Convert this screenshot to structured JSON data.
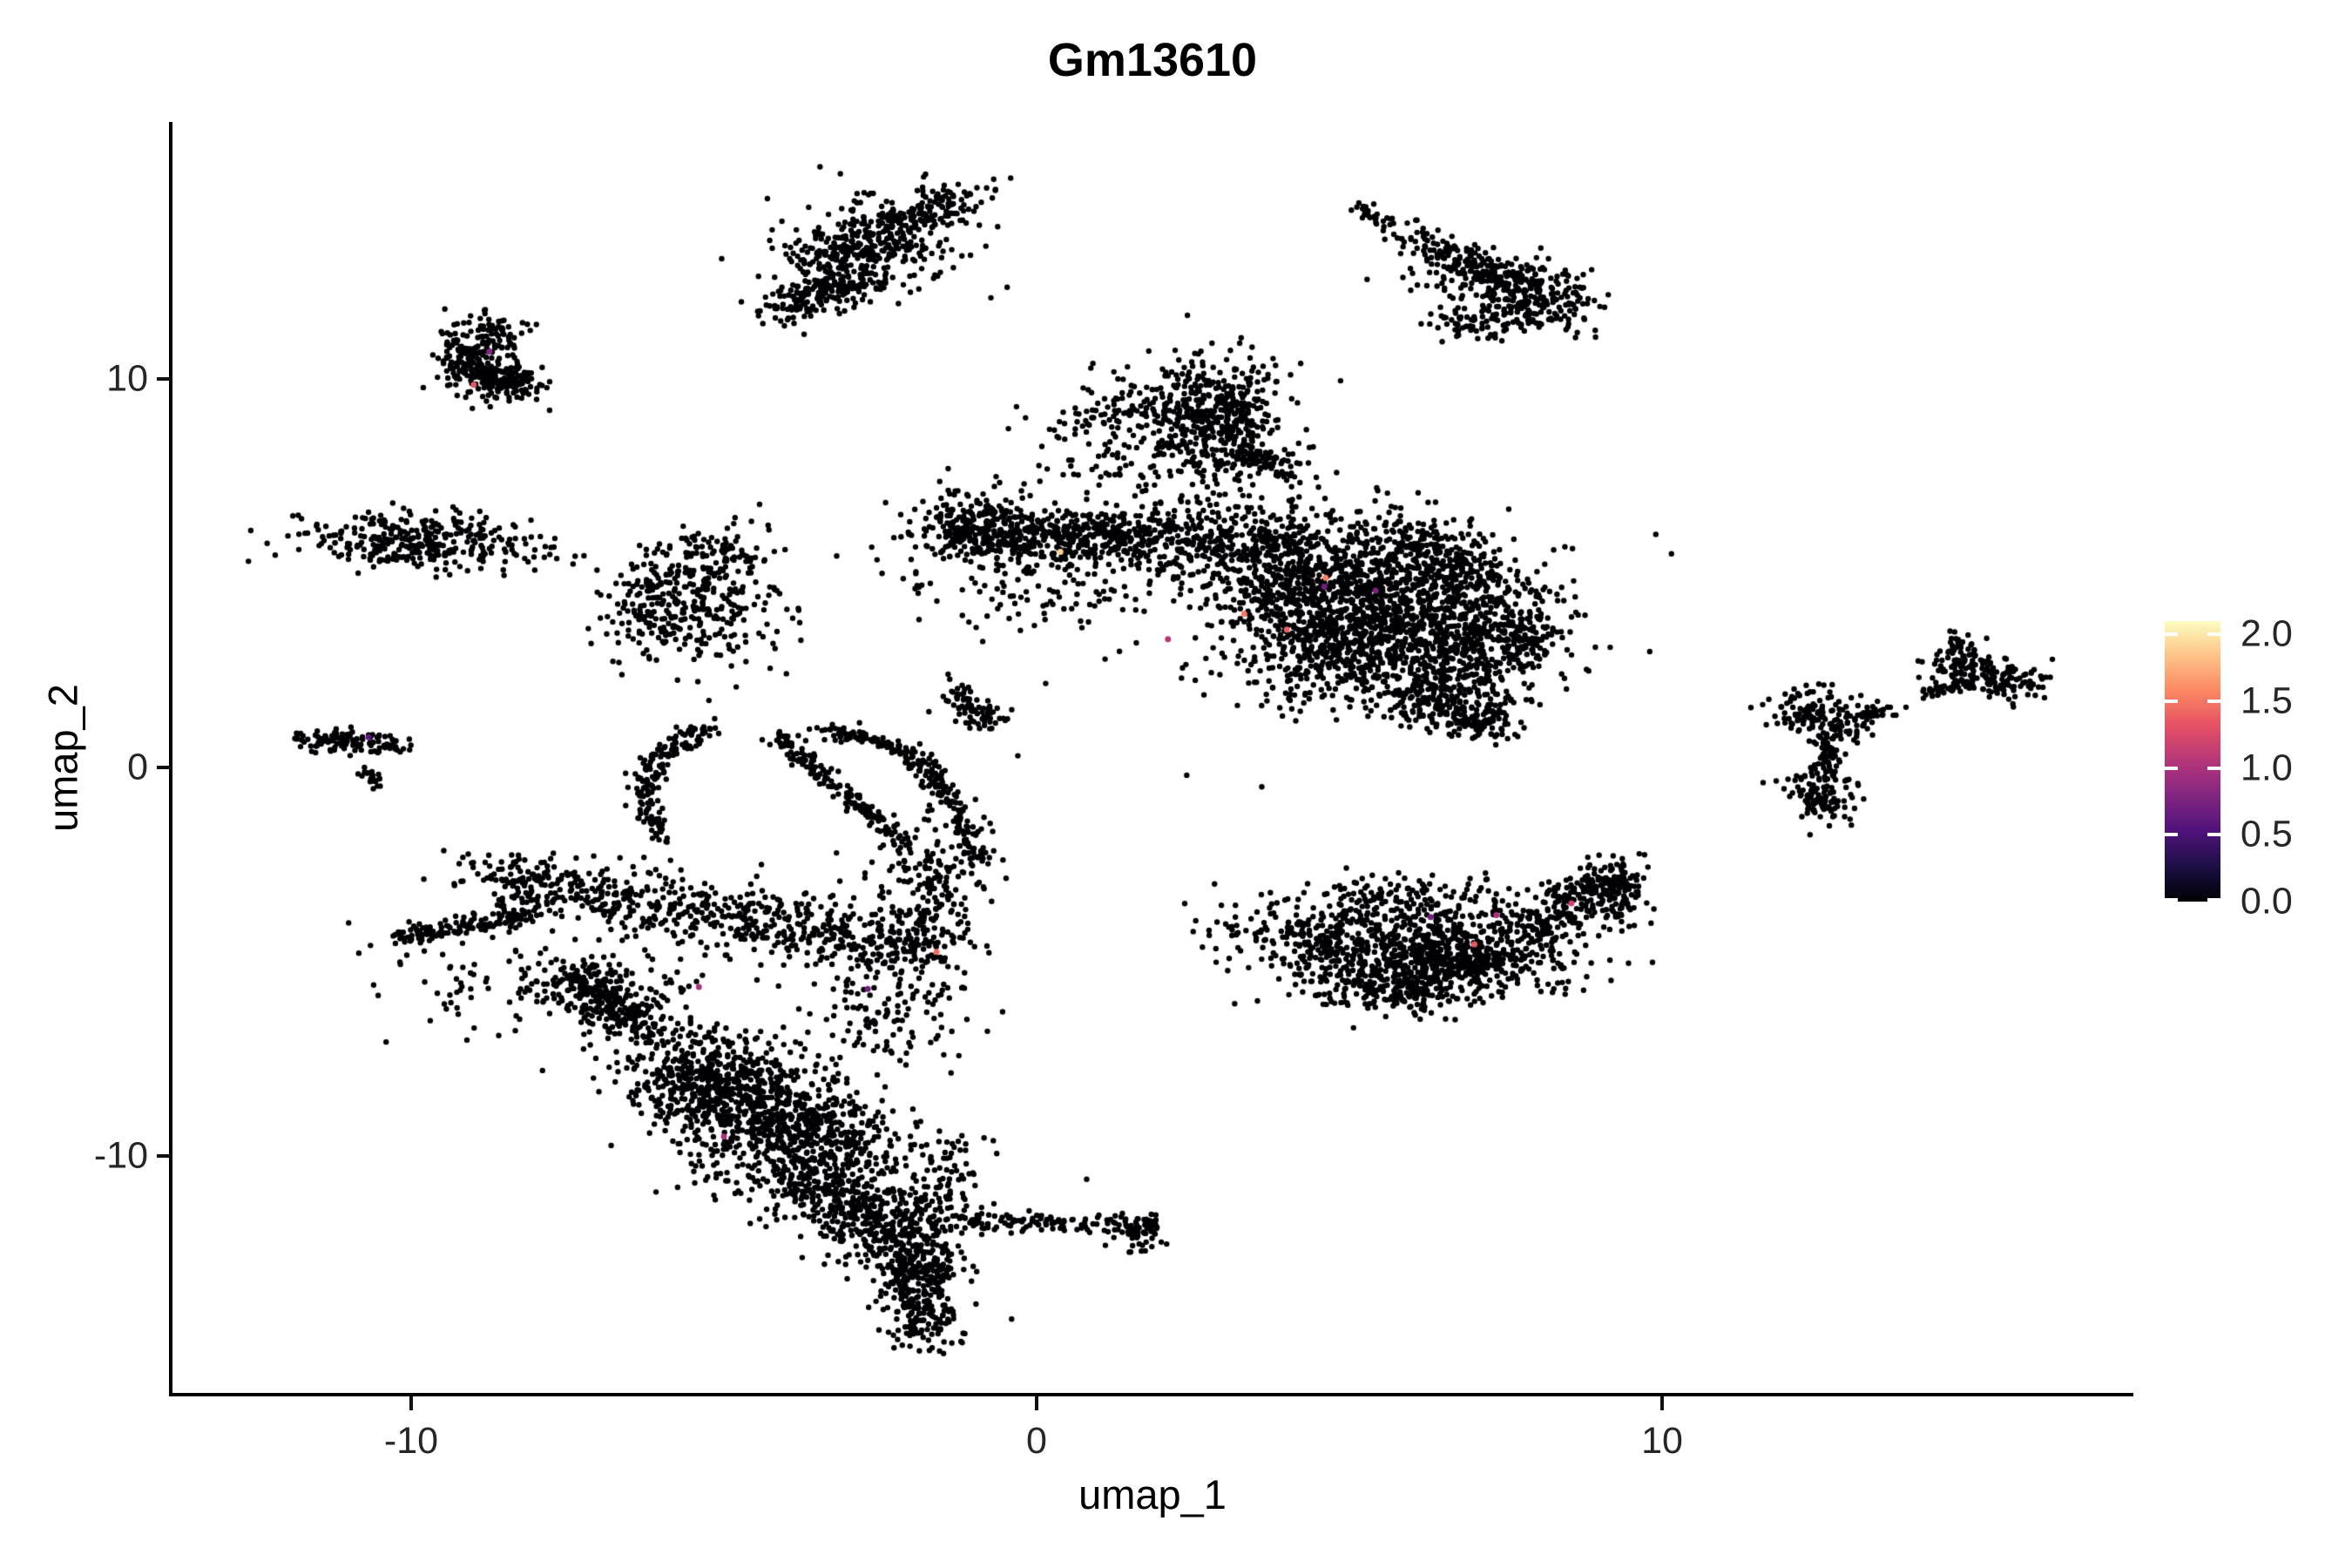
{
  "chart_data": {
    "type": "scatter",
    "title": "Gm13610",
    "x_axis": {
      "label": "umap_1",
      "range": [
        -13.8,
        17.5
      ],
      "ticks": [
        {
          "value": -10,
          "label": "-10"
        },
        {
          "value": 0,
          "label": "0"
        },
        {
          "value": 10,
          "label": "10"
        }
      ]
    },
    "y_axis": {
      "label": "umap_2",
      "range": [
        -16.1,
        16.6
      ],
      "ticks": [
        {
          "value": 10,
          "label": "10"
        },
        {
          "value": 0,
          "label": "0"
        },
        {
          "value": -10,
          "label": "-10"
        }
      ]
    },
    "legend": {
      "position": "right",
      "max": 2.1,
      "colormap": "magma",
      "stops": [
        "#000004",
        "#1C1044",
        "#4F127B",
        "#812581",
        "#B5367A",
        "#E55064",
        "#FB8761",
        "#FEC287",
        "#FCFDBF"
      ],
      "ticks": [
        {
          "value": 2.0,
          "label": "2.0"
        },
        {
          "value": 1.5,
          "label": "1.5"
        },
        {
          "value": 1.0,
          "label": "1.0"
        },
        {
          "value": 0.5,
          "label": "0.5"
        },
        {
          "value": 0.0,
          "label": "0.0"
        }
      ]
    },
    "point_color_zero": "#000004",
    "point_radius": 3.2,
    "seed": 7,
    "clusters": [
      {
        "type": "strand",
        "p0": [
          -3.5,
          12.9
        ],
        "p1": [
          -1.15,
          14.8
        ],
        "jitter": 0.28,
        "n": 260
      },
      {
        "type": "strand",
        "p0": [
          -4.05,
          11.75
        ],
        "p1": [
          -2.95,
          12.55
        ],
        "jitter": 0.22,
        "n": 150
      },
      {
        "type": "blob",
        "c": [
          -2.65,
          13.35
        ],
        "s": [
          0.85,
          0.65
        ],
        "angle": 35,
        "n": 260
      },
      {
        "type": "strand",
        "p0": [
          5.15,
          14.45
        ],
        "p1": [
          5.6,
          13.95
        ],
        "jitter": 0.09,
        "n": 30
      },
      {
        "type": "strand",
        "p0": [
          5.95,
          13.7
        ],
        "p1": [
          7.55,
          12.55
        ],
        "jitter": 0.2,
        "n": 130
      },
      {
        "type": "blob",
        "c": [
          7.9,
          12.1
        ],
        "s": [
          0.5,
          0.4
        ],
        "angle": -35,
        "n": 240
      },
      {
        "type": "blob",
        "c": [
          6.9,
          12.75
        ],
        "s": [
          0.55,
          0.45
        ],
        "angle": 0,
        "n": 70
      },
      {
        "type": "blob",
        "c": [
          7.0,
          11.55
        ],
        "s": [
          0.35,
          0.28
        ],
        "angle": 0,
        "n": 70
      },
      {
        "type": "arc",
        "p0": [
          -8.55,
          11.3
        ],
        "p1": [
          -9.75,
          10.5
        ],
        "p2": [
          -8.5,
          9.8
        ],
        "jitter": 0.28,
        "n": 300
      },
      {
        "type": "blob",
        "c": [
          -8.3,
          9.95
        ],
        "s": [
          0.3,
          0.25
        ],
        "angle": 0,
        "n": 90
      },
      {
        "type": "blob",
        "c": [
          -9.9,
          5.85
        ],
        "s": [
          1.0,
          0.36
        ],
        "angle": -4,
        "n": 330
      },
      {
        "type": "strand",
        "p0": [
          -11.7,
          0.75
        ],
        "p1": [
          -10.2,
          0.55
        ],
        "jitter": 0.16,
        "n": 120
      },
      {
        "type": "strand",
        "p0": [
          -10.75,
          -0.05
        ],
        "p1": [
          -10.5,
          -0.5
        ],
        "jitter": 0.07,
        "n": 22
      },
      {
        "type": "blob",
        "c": [
          -5.85,
          4.3
        ],
        "s": [
          0.55,
          0.75
        ],
        "angle": 0,
        "n": 280
      },
      {
        "type": "blob",
        "c": [
          -5.05,
          5.55
        ],
        "s": [
          0.35,
          0.3
        ],
        "angle": 0,
        "n": 70
      },
      {
        "type": "blob",
        "c": [
          -4.75,
          4.2
        ],
        "s": [
          0.55,
          0.85
        ],
        "angle": 0,
        "n": 90
      },
      {
        "type": "blob",
        "c": [
          2.85,
          8.95
        ],
        "s": [
          0.6,
          0.8
        ],
        "angle": 0,
        "n": 480
      },
      {
        "type": "strand",
        "p0": [
          3.3,
          8.1
        ],
        "p1": [
          4.15,
          7.55
        ],
        "jitter": 0.16,
        "n": 70
      },
      {
        "type": "blob",
        "c": [
          1.7,
          8.3
        ],
        "s": [
          0.9,
          0.85
        ],
        "angle": 0,
        "n": 120
      },
      {
        "type": "strand",
        "p0": [
          0.5,
          9.0
        ],
        "p1": [
          2.0,
          9.5
        ],
        "jitter": 0.3,
        "n": 60
      },
      {
        "type": "strand",
        "p0": [
          -1.6,
          6.05
        ],
        "p1": [
          1.6,
          5.95
        ],
        "jitter": 0.33,
        "n": 520
      },
      {
        "type": "blob",
        "c": [
          -0.9,
          6.75
        ],
        "s": [
          0.4,
          0.3
        ],
        "angle": 0,
        "n": 60
      },
      {
        "type": "blob",
        "c": [
          0.2,
          4.9
        ],
        "s": [
          1.1,
          0.75
        ],
        "angle": 0,
        "n": 170
      },
      {
        "type": "strand",
        "p0": [
          -1.45,
          1.95
        ],
        "p1": [
          -0.7,
          1.2
        ],
        "jitter": 0.18,
        "n": 80
      },
      {
        "type": "blob",
        "c": [
          2.1,
          5.8
        ],
        "s": [
          0.5,
          0.5
        ],
        "angle": 0,
        "n": 130
      },
      {
        "type": "blob",
        "c": [
          4.2,
          4.7
        ],
        "s": [
          0.85,
          0.95
        ],
        "angle": 0,
        "n": 600
      },
      {
        "type": "blob",
        "c": [
          5.8,
          4.4
        ],
        "s": [
          0.95,
          0.95
        ],
        "angle": 0,
        "n": 650
      },
      {
        "type": "blob",
        "c": [
          6.9,
          3.4
        ],
        "s": [
          0.7,
          0.85
        ],
        "angle": 0,
        "n": 430
      },
      {
        "type": "blob",
        "c": [
          5.0,
          2.9
        ],
        "s": [
          0.95,
          0.7
        ],
        "angle": 0,
        "n": 430
      },
      {
        "type": "blob",
        "c": [
          6.5,
          1.75
        ],
        "s": [
          0.5,
          0.45
        ],
        "angle": 0,
        "n": 190
      },
      {
        "type": "blob",
        "c": [
          7.15,
          1.2
        ],
        "s": [
          0.3,
          0.3
        ],
        "angle": 0,
        "n": 80
      },
      {
        "type": "blob",
        "c": [
          3.4,
          5.85
        ],
        "s": [
          0.65,
          0.45
        ],
        "angle": 0,
        "n": 210
      },
      {
        "type": "strand",
        "p0": [
          5.5,
          6.3
        ],
        "p1": [
          7.6,
          4.6
        ],
        "jitter": 0.3,
        "n": 160
      },
      {
        "type": "blob",
        "c": [
          7.85,
          3.3
        ],
        "s": [
          0.28,
          0.55
        ],
        "angle": 0,
        "n": 100
      },
      {
        "type": "blob",
        "c": [
          12.35,
          1.5
        ],
        "s": [
          0.4,
          0.3
        ],
        "angle": 0,
        "n": 100
      },
      {
        "type": "blob",
        "c": [
          12.8,
          1.0
        ],
        "s": [
          0.22,
          0.2
        ],
        "angle": 0,
        "n": 55
      },
      {
        "type": "strand",
        "p0": [
          12.62,
          0.85
        ],
        "p1": [
          12.7,
          -0.1
        ],
        "jitter": 0.07,
        "n": 40
      },
      {
        "type": "blob",
        "c": [
          12.55,
          -0.7
        ],
        "s": [
          0.27,
          0.38
        ],
        "angle": 0,
        "n": 120
      },
      {
        "type": "strand",
        "p0": [
          13.05,
          1.3
        ],
        "p1": [
          13.7,
          1.5
        ],
        "jitter": 0.08,
        "n": 30
      },
      {
        "type": "strand",
        "p0": [
          14.2,
          1.9
        ],
        "p1": [
          14.75,
          2.15
        ],
        "jitter": 0.09,
        "n": 35
      },
      {
        "type": "blob",
        "c": [
          15.15,
          2.4
        ],
        "s": [
          0.5,
          0.26
        ],
        "angle": -18,
        "n": 170
      },
      {
        "type": "blob",
        "c": [
          14.8,
          3.05
        ],
        "s": [
          0.17,
          0.22
        ],
        "angle": 0,
        "n": 35
      },
      {
        "type": "blob",
        "c": [
          5.3,
          -4.6
        ],
        "s": [
          1.05,
          0.55
        ],
        "angle": -8,
        "n": 580
      },
      {
        "type": "blob",
        "c": [
          6.9,
          -4.9
        ],
        "s": [
          0.85,
          0.5
        ],
        "angle": 8,
        "n": 430
      },
      {
        "type": "strand",
        "p0": [
          7.9,
          -4.2
        ],
        "p1": [
          9.25,
          -2.85
        ],
        "jitter": 0.3,
        "n": 240
      },
      {
        "type": "blob",
        "c": [
          9.3,
          -3.2
        ],
        "s": [
          0.25,
          0.45
        ],
        "angle": 0,
        "n": 90
      },
      {
        "type": "strand",
        "p0": [
          4.9,
          -3.3
        ],
        "p1": [
          7.5,
          -3.35
        ],
        "jitter": 0.35,
        "n": 120
      },
      {
        "type": "blob",
        "c": [
          5.6,
          -5.75
        ],
        "s": [
          0.75,
          0.3
        ],
        "angle": -6,
        "n": 170
      },
      {
        "type": "arc",
        "p0": [
          -5.2,
          1.0
        ],
        "p1": [
          -6.7,
          0.3
        ],
        "p2": [
          -6.0,
          -1.8
        ],
        "jitter": 0.12,
        "n": 170
      },
      {
        "type": "strand",
        "p0": [
          -4.15,
          0.8
        ],
        "p1": [
          -2.1,
          -2.0
        ],
        "jitter": 0.1,
        "n": 170
      },
      {
        "type": "arc",
        "p0": [
          -3.5,
          0.9
        ],
        "p1": [
          -2.1,
          0.95
        ],
        "p2": [
          -1.55,
          -0.6
        ],
        "jitter": 0.12,
        "n": 140
      },
      {
        "type": "strand",
        "p0": [
          -1.5,
          -0.6
        ],
        "p1": [
          -0.9,
          -2.4
        ],
        "jitter": 0.16,
        "n": 90
      },
      {
        "type": "strand",
        "p0": [
          -10.2,
          -4.35
        ],
        "p1": [
          -8.0,
          -3.8
        ],
        "jitter": 0.12,
        "n": 140
      },
      {
        "type": "blob",
        "c": [
          -7.2,
          -5.8
        ],
        "s": [
          0.45,
          0.55
        ],
        "angle": 40,
        "n": 170
      },
      {
        "type": "strand",
        "p0": [
          -7.5,
          -5.4
        ],
        "p1": [
          -6.1,
          -6.9
        ],
        "jitter": 0.18,
        "n": 120
      },
      {
        "type": "strand",
        "p0": [
          -8.8,
          -2.8
        ],
        "p1": [
          -1.8,
          -4.7
        ],
        "jitter": 0.42,
        "n": 700
      },
      {
        "type": "blob",
        "c": [
          -1.7,
          -3.5
        ],
        "s": [
          0.5,
          0.95
        ],
        "angle": 0,
        "n": 220
      },
      {
        "type": "blob",
        "c": [
          -6.4,
          -6.2
        ],
        "s": [
          0.5,
          0.6
        ],
        "angle": 0,
        "n": 80
      },
      {
        "type": "blob",
        "c": [
          -2.6,
          -6.4
        ],
        "s": [
          0.75,
          0.85
        ],
        "angle": 0,
        "n": 140
      },
      {
        "type": "blob",
        "c": [
          -9.3,
          -5.4
        ],
        "s": [
          0.7,
          0.8
        ],
        "angle": 0,
        "n": 50
      },
      {
        "type": "blob",
        "c": [
          -5.3,
          -8.3
        ],
        "s": [
          0.6,
          0.6
        ],
        "angle": 0,
        "n": 340
      },
      {
        "type": "blob",
        "c": [
          -4.3,
          -9.3
        ],
        "s": [
          0.65,
          0.75
        ],
        "angle": 0,
        "n": 400
      },
      {
        "type": "blob",
        "c": [
          -3.3,
          -10.5
        ],
        "s": [
          0.6,
          0.75
        ],
        "angle": 0,
        "n": 350
      },
      {
        "type": "blob",
        "c": [
          -2.55,
          -11.7
        ],
        "s": [
          0.5,
          0.65
        ],
        "angle": 0,
        "n": 270
      },
      {
        "type": "blob",
        "c": [
          -2.0,
          -12.9
        ],
        "s": [
          0.38,
          0.6
        ],
        "angle": 0,
        "n": 190
      },
      {
        "type": "blob",
        "c": [
          -1.8,
          -14.2
        ],
        "s": [
          0.28,
          0.42
        ],
        "angle": 0,
        "n": 110
      },
      {
        "type": "strand",
        "p0": [
          -5.9,
          -7.1
        ],
        "p1": [
          -2.7,
          -9.4
        ],
        "jitter": 0.45,
        "n": 300
      },
      {
        "type": "strand",
        "p0": [
          -1.1,
          -11.7
        ],
        "p1": [
          1.9,
          -11.75
        ],
        "jitter": 0.14,
        "n": 130
      },
      {
        "type": "blob",
        "c": [
          1.65,
          -12.0
        ],
        "s": [
          0.22,
          0.28
        ],
        "angle": 0,
        "n": 45
      },
      {
        "type": "strand",
        "p0": [
          -1.3,
          -9.5
        ],
        "p1": [
          -1.8,
          -13.5
        ],
        "jitter": 0.3,
        "n": 150
      }
    ],
    "highlight_points": [
      {
        "x": -8.75,
        "y": 10.7,
        "v": 0.8
      },
      {
        "x": -9.0,
        "y": 9.85,
        "v": 1.35
      },
      {
        "x": -10.68,
        "y": 0.78,
        "v": 0.6
      },
      {
        "x": 0.38,
        "y": 5.55,
        "v": 1.9
      },
      {
        "x": 2.1,
        "y": 3.3,
        "v": 1.05
      },
      {
        "x": 4.0,
        "y": 3.55,
        "v": 1.4
      },
      {
        "x": 4.62,
        "y": 4.88,
        "v": 1.55
      },
      {
        "x": 4.6,
        "y": 4.65,
        "v": 0.7
      },
      {
        "x": 5.42,
        "y": 4.55,
        "v": 0.75
      },
      {
        "x": 3.32,
        "y": 3.95,
        "v": 1.5
      },
      {
        "x": 6.3,
        "y": -3.85,
        "v": 0.75
      },
      {
        "x": 7.35,
        "y": -3.8,
        "v": 1.0
      },
      {
        "x": 8.55,
        "y": -3.5,
        "v": 1.2
      },
      {
        "x": 7.0,
        "y": -4.55,
        "v": 1.35
      },
      {
        "x": -5.4,
        "y": -5.65,
        "v": 1.0
      },
      {
        "x": -5.0,
        "y": -9.5,
        "v": 1.0
      },
      {
        "x": -1.6,
        "y": -4.75,
        "v": 1.45
      },
      {
        "x": -2.7,
        "y": -5.7,
        "v": 0.7
      }
    ],
    "stray_points": [
      [
        9.9,
        6.0
      ],
      [
        10.15,
        5.5
      ],
      [
        3.6,
        -0.5
      ],
      [
        2.4,
        -0.2
      ],
      [
        -0.3,
        0.3
      ],
      [
        0.9,
        10.4
      ],
      [
        1.3,
        10.0
      ],
      [
        12.05,
        1.7
      ],
      [
        11.95,
        -0.55
      ],
      [
        13.9,
        1.55
      ],
      [
        -7.9,
        -7.8
      ],
      [
        -8.6,
        -6.9
      ],
      [
        0.8,
        -10.6
      ],
      [
        1.1,
        -12.3
      ],
      [
        -0.4,
        -14.2
      ],
      [
        -10.6,
        -5.6
      ],
      [
        -11.0,
        -4.0
      ],
      [
        2.3,
        6.9
      ],
      [
        1.9,
        7.6
      ],
      [
        0.8,
        6.9
      ],
      [
        -0.2,
        7.3
      ],
      [
        -4.4,
        -2.5
      ],
      [
        -3.2,
        -2.2
      ],
      [
        -9.6,
        4.9
      ],
      [
        -8.85,
        5.3
      ]
    ]
  }
}
